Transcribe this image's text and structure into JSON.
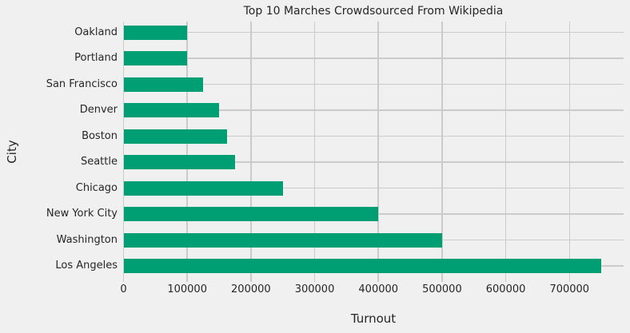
{
  "figure": {
    "background": "#F0F0F0",
    "grid_color": "#CBCBCB",
    "text_color": "#262626"
  },
  "chart_data": {
    "type": "bar",
    "orientation": "horizontal",
    "title": "Top 10 Marches Crowdsourced From Wikipedia",
    "xlabel": "Turnout",
    "ylabel": "City",
    "categories": [
      "Oakland",
      "Portland",
      "San Francisco",
      "Denver",
      "Boston",
      "Seattle",
      "Chicago",
      "New York City",
      "Washington",
      "Los Angeles"
    ],
    "values": [
      100000,
      100000,
      125000,
      150000,
      162500,
      175000,
      250000,
      400000,
      500000,
      750000
    ],
    "bar_color": "#009E73",
    "xlim": [
      0,
      785000
    ],
    "xticks": [
      0,
      100000,
      200000,
      300000,
      400000,
      500000,
      600000,
      700000
    ],
    "xtick_labels": [
      "0",
      "100000",
      "200000",
      "300000",
      "400000",
      "500000",
      "600000",
      "700000"
    ],
    "grid": true,
    "legend_position": "none"
  }
}
